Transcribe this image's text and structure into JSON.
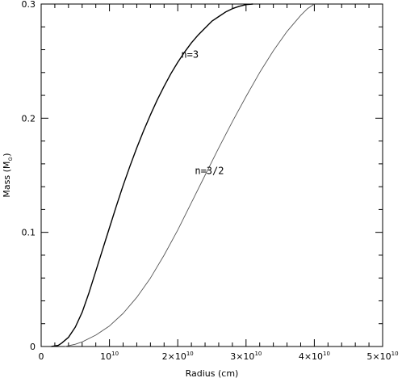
{
  "chart_data": {
    "type": "line",
    "title": "",
    "xlabel": "Radius (cm)",
    "ylabel_main": "Mass (M",
    "ylabel_symbol": "⊙",
    "ylabel_close": ")",
    "xlim": [
      0,
      50000000000
    ],
    "ylim": [
      0,
      0.3
    ],
    "grid": false,
    "legend": "none",
    "x_ticks": [
      {
        "value": 0,
        "base": "0",
        "sup": ""
      },
      {
        "value": 10000000000,
        "base": "10",
        "sup": "10"
      },
      {
        "value": 20000000000,
        "base": "2×10",
        "sup": "10"
      },
      {
        "value": 30000000000,
        "base": "3×10",
        "sup": "10"
      },
      {
        "value": 40000000000,
        "base": "4×10",
        "sup": "10"
      },
      {
        "value": 50000000000,
        "base": "5×10",
        "sup": "10"
      }
    ],
    "y_ticks": [
      {
        "value": 0,
        "label": "0"
      },
      {
        "value": 0.1,
        "label": "0.1"
      },
      {
        "value": 0.2,
        "label": "0.2"
      },
      {
        "value": 0.3,
        "label": "0.3"
      }
    ],
    "series": [
      {
        "name": "n=3",
        "color": "#000000",
        "x": [
          1500000000,
          2500000000,
          3000000000,
          4000000000,
          5000000000,
          6000000000,
          7000000000,
          8000000000,
          9000000000,
          10000000000,
          11000000000,
          12000000000,
          13000000000,
          14000000000,
          15000000000,
          16000000000,
          17000000000,
          18000000000,
          19000000000,
          20000000000,
          21000000000,
          22000000000,
          23000000000,
          24000000000,
          25000000000,
          26000000000,
          27000000000,
          28000000000,
          29000000000,
          30000000000,
          31000000000
        ],
        "y": [
          0.0,
          0.001,
          0.003,
          0.008,
          0.017,
          0.03,
          0.047,
          0.066,
          0.085,
          0.104,
          0.123,
          0.141,
          0.158,
          0.174,
          0.189,
          0.203,
          0.216,
          0.228,
          0.239,
          0.249,
          0.258,
          0.266,
          0.273,
          0.279,
          0.285,
          0.289,
          0.293,
          0.296,
          0.298,
          0.2995,
          0.3
        ]
      },
      {
        "name": "n=3/2",
        "color": "#555555",
        "x": [
          3500000000,
          5000000000,
          6000000000,
          8000000000,
          10000000000,
          12000000000,
          14000000000,
          16000000000,
          18000000000,
          20000000000,
          22000000000,
          24000000000,
          26000000000,
          28000000000,
          30000000000,
          32000000000,
          34000000000,
          36000000000,
          38000000000,
          39000000000,
          40000000000
        ],
        "y": [
          0.0,
          0.002,
          0.004,
          0.01,
          0.018,
          0.029,
          0.043,
          0.06,
          0.08,
          0.102,
          0.126,
          0.15,
          0.174,
          0.197,
          0.219,
          0.24,
          0.259,
          0.276,
          0.29,
          0.296,
          0.3
        ]
      }
    ],
    "annotations": [
      {
        "text": "n=3",
        "x": 20500000000,
        "y": 0.253
      },
      {
        "text": "n=3/2",
        "x": 22500000000,
        "y": 0.151
      }
    ]
  }
}
